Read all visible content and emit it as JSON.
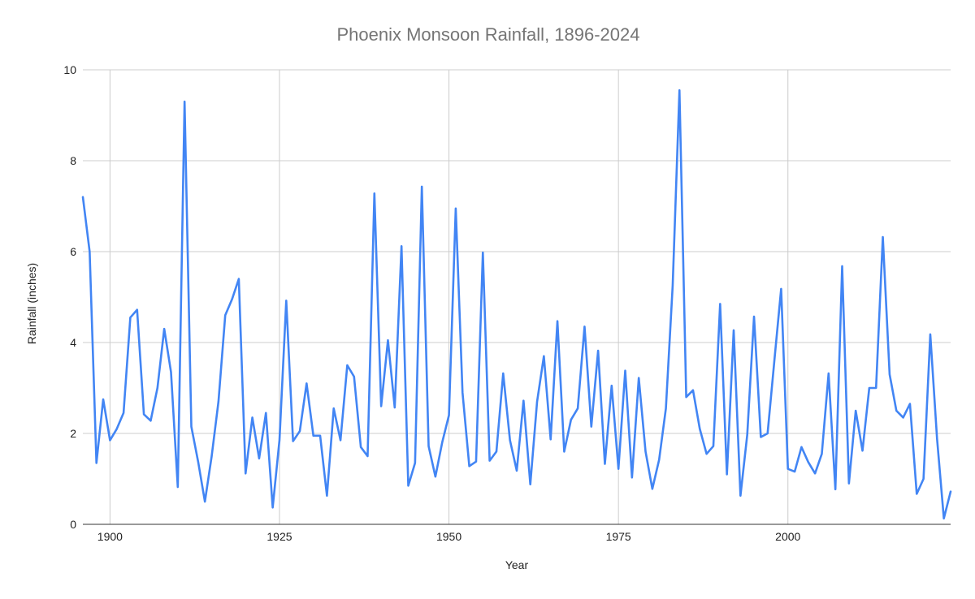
{
  "chart_data": {
    "type": "line",
    "title": "Phoenix Monsoon Rainfall, 1896-2024",
    "xlabel": "Year",
    "ylabel": "Rainfall (inches)",
    "xlim": [
      1896,
      2024
    ],
    "ylim": [
      0,
      10
    ],
    "x_ticks": [
      1900,
      1925,
      1950,
      1975,
      2000
    ],
    "y_ticks": [
      0,
      2,
      4,
      6,
      8,
      10
    ],
    "grid": true,
    "legend": "none",
    "series": [
      {
        "color": "#4285F4",
        "x": [
          1896,
          1897,
          1898,
          1899,
          1900,
          1901,
          1902,
          1903,
          1904,
          1905,
          1906,
          1907,
          1908,
          1909,
          1910,
          1911,
          1912,
          1913,
          1914,
          1915,
          1916,
          1917,
          1918,
          1919,
          1920,
          1921,
          1922,
          1923,
          1924,
          1925,
          1926,
          1927,
          1928,
          1929,
          1930,
          1931,
          1932,
          1933,
          1934,
          1935,
          1936,
          1937,
          1938,
          1939,
          1940,
          1941,
          1942,
          1943,
          1944,
          1945,
          1946,
          1947,
          1948,
          1949,
          1950,
          1951,
          1952,
          1953,
          1954,
          1955,
          1956,
          1957,
          1958,
          1959,
          1960,
          1961,
          1962,
          1963,
          1964,
          1965,
          1966,
          1967,
          1968,
          1969,
          1970,
          1971,
          1972,
          1973,
          1974,
          1975,
          1976,
          1977,
          1978,
          1979,
          1980,
          1981,
          1982,
          1983,
          1984,
          1985,
          1986,
          1987,
          1988,
          1989,
          1990,
          1991,
          1992,
          1993,
          1994,
          1995,
          1996,
          1997,
          1998,
          1999,
          2000,
          2001,
          2002,
          2003,
          2004,
          2005,
          2006,
          2007,
          2008,
          2009,
          2010,
          2011,
          2012,
          2013,
          2014,
          2015,
          2016,
          2017,
          2018,
          2019,
          2020,
          2021,
          2022,
          2023,
          2024
        ],
        "y": [
          7.2,
          6.0,
          1.35,
          2.75,
          1.85,
          2.1,
          2.45,
          4.55,
          4.72,
          2.42,
          2.28,
          3.0,
          4.3,
          3.35,
          0.82,
          9.3,
          2.15,
          1.38,
          0.5,
          1.5,
          2.7,
          4.6,
          4.95,
          5.4,
          1.12,
          2.35,
          1.45,
          2.45,
          0.37,
          1.85,
          4.92,
          1.83,
          2.05,
          3.1,
          1.95,
          1.95,
          0.63,
          2.55,
          1.85,
          3.5,
          3.25,
          1.7,
          1.5,
          7.28,
          2.6,
          4.05,
          2.57,
          6.12,
          0.85,
          1.35,
          7.43,
          1.72,
          1.05,
          1.8,
          2.4,
          6.95,
          2.9,
          1.28,
          1.38,
          5.98,
          1.4,
          1.6,
          3.32,
          1.85,
          1.18,
          2.72,
          0.88,
          2.7,
          3.7,
          1.87,
          4.47,
          1.6,
          2.3,
          2.55,
          4.35,
          2.15,
          3.82,
          1.33,
          3.05,
          1.22,
          3.38,
          1.03,
          3.22,
          1.6,
          0.78,
          1.42,
          2.55,
          5.25,
          9.55,
          2.8,
          2.95,
          2.1,
          1.55,
          1.72,
          4.85,
          1.1,
          4.27,
          0.63,
          1.97,
          4.57,
          1.92,
          2.0,
          3.6,
          5.18,
          1.22,
          1.16,
          1.7,
          1.37,
          1.12,
          1.55,
          3.32,
          0.77,
          5.68,
          0.9,
          2.5,
          1.62,
          3.0,
          3.0,
          6.32,
          3.3,
          2.5,
          2.35,
          2.65,
          0.67,
          1.0,
          4.18,
          1.88,
          0.13,
          0.72
        ]
      }
    ]
  }
}
